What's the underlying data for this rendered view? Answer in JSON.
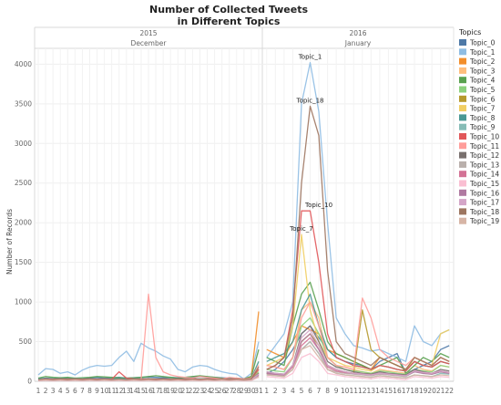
{
  "chart_data": {
    "type": "line",
    "title_line1": "Number of Collected Tweets",
    "title_line2": "in Different Topics",
    "ylabel": "Number of Records",
    "xlabel": "",
    "ylim": [
      0,
      4200
    ],
    "yticks": [
      0,
      500,
      1000,
      1500,
      2000,
      2500,
      3000,
      3500,
      4000
    ],
    "grid": true,
    "legend_position": "right",
    "legend_title": "Topics",
    "panes": [
      {
        "year": "2015",
        "month": "December",
        "days": [
          "1",
          "2",
          "3",
          "4",
          "5",
          "6",
          "7",
          "8",
          "9",
          "10",
          "11",
          "12",
          "13",
          "14",
          "15",
          "16",
          "17",
          "18",
          "19",
          "20",
          "21",
          "22",
          "23",
          "24",
          "25",
          "26",
          "27",
          "28",
          "29",
          "30",
          "31"
        ]
      },
      {
        "year": "2016",
        "month": "January",
        "days": [
          "1",
          "2",
          "3",
          "4",
          "5",
          "6",
          "7",
          "8",
          "9",
          "10",
          "11",
          "12",
          "13",
          "14",
          "15",
          "16",
          "17",
          "18",
          "19",
          "20",
          "21",
          "22"
        ]
      }
    ],
    "series": [
      {
        "name": "Topic_0",
        "color": "#4e79a7",
        "dec": [
          30,
          40,
          35,
          45,
          40,
          35,
          30,
          45,
          50,
          40,
          45,
          50,
          40,
          45,
          50,
          55,
          50,
          45,
          50,
          45,
          50,
          55,
          60,
          55,
          50,
          45,
          40,
          35,
          30,
          60,
          150
        ],
        "jan": [
          100,
          150,
          250,
          400,
          600,
          700,
          550,
          400,
          300,
          250,
          220,
          200,
          150,
          250,
          300,
          350,
          100,
          150,
          200,
          250,
          400,
          450
        ]
      },
      {
        "name": "Topic_1",
        "color": "#8fbde3",
        "dec": [
          80,
          160,
          150,
          100,
          120,
          80,
          140,
          180,
          200,
          190,
          200,
          300,
          380,
          250,
          480,
          420,
          380,
          320,
          280,
          150,
          120,
          180,
          200,
          190,
          150,
          120,
          100,
          90,
          30,
          100,
          500
        ],
        "jan": [
          300,
          450,
          600,
          1000,
          3500,
          4020,
          3400,
          2000,
          800,
          600,
          450,
          420,
          380,
          400,
          350,
          300,
          250,
          700,
          500,
          450,
          600,
          650
        ]
      },
      {
        "name": "Topic_2",
        "color": "#f28e2b",
        "dec": [
          20,
          30,
          25,
          20,
          30,
          25,
          20,
          30,
          25,
          20,
          30,
          25,
          20,
          25,
          30,
          25,
          20,
          30,
          25,
          20,
          30,
          25,
          20,
          25,
          30,
          25,
          20,
          25,
          30,
          60,
          880
        ],
        "jan": [
          400,
          350,
          300,
          500,
          700,
          650,
          600,
          400,
          350,
          300,
          250,
          200,
          150,
          300,
          250,
          200,
          150,
          300,
          250,
          200,
          300,
          250
        ]
      },
      {
        "name": "Topic_3",
        "color": "#ffbe7d",
        "dec": [
          10,
          15,
          10,
          15,
          10,
          15,
          10,
          15,
          10,
          15,
          10,
          15,
          10,
          15,
          10,
          15,
          10,
          15,
          10,
          15,
          10,
          15,
          10,
          15,
          10,
          15,
          10,
          15,
          10,
          20,
          150
        ],
        "jan": [
          200,
          180,
          150,
          300,
          900,
          1000,
          800,
          300,
          200,
          180,
          150,
          120,
          100,
          150,
          130,
          120,
          100,
          200,
          150,
          130,
          200,
          180
        ]
      },
      {
        "name": "Topic_4",
        "color": "#59a14f",
        "dec": [
          40,
          60,
          50,
          45,
          50,
          40,
          45,
          50,
          60,
          55,
          50,
          45,
          40,
          45,
          50,
          60,
          70,
          60,
          50,
          40,
          50,
          60,
          70,
          60,
          50,
          40,
          30,
          40,
          30,
          60,
          400
        ],
        "jan": [
          300,
          250,
          200,
          700,
          1100,
          1250,
          900,
          500,
          350,
          300,
          250,
          200,
          150,
          200,
          250,
          300,
          100,
          200,
          300,
          250,
          350,
          300
        ]
      },
      {
        "name": "Topic_5",
        "color": "#8cd17d",
        "dec": [
          20,
          25,
          30,
          25,
          20,
          25,
          30,
          25,
          20,
          25,
          30,
          25,
          20,
          25,
          30,
          25,
          20,
          25,
          30,
          25,
          20,
          25,
          30,
          25,
          20,
          25,
          30,
          25,
          20,
          30,
          120
        ],
        "jan": [
          150,
          130,
          120,
          300,
          700,
          800,
          600,
          300,
          200,
          150,
          130,
          120,
          100,
          130,
          120,
          100,
          90,
          150,
          130,
          120,
          200,
          180
        ]
      },
      {
        "name": "Topic_6",
        "color": "#b6992d",
        "dec": [
          15,
          20,
          15,
          20,
          15,
          20,
          15,
          20,
          15,
          20,
          15,
          20,
          15,
          20,
          15,
          20,
          15,
          20,
          15,
          20,
          15,
          20,
          15,
          20,
          15,
          20,
          15,
          20,
          15,
          20,
          80
        ],
        "jan": [
          100,
          90,
          80,
          200,
          500,
          600,
          450,
          200,
          150,
          120,
          100,
          900,
          400,
          300,
          250,
          200,
          150,
          250,
          200,
          180,
          250,
          220
        ]
      },
      {
        "name": "Topic_7",
        "color": "#f1ce63",
        "dec": [
          10,
          15,
          20,
          15,
          10,
          15,
          20,
          15,
          10,
          15,
          20,
          15,
          10,
          15,
          20,
          15,
          10,
          15,
          20,
          15,
          10,
          15,
          20,
          15,
          10,
          15,
          20,
          15,
          10,
          20,
          100
        ],
        "jan": [
          200,
          250,
          300,
          700,
          1850,
          900,
          500,
          300,
          250,
          200,
          180,
          150,
          130,
          200,
          180,
          150,
          130,
          300,
          250,
          200,
          600,
          650
        ]
      },
      {
        "name": "Topic_8",
        "color": "#499894",
        "dec": [
          30,
          35,
          30,
          35,
          30,
          35,
          30,
          35,
          30,
          35,
          30,
          35,
          30,
          35,
          30,
          35,
          30,
          35,
          30,
          35,
          30,
          35,
          30,
          35,
          30,
          35,
          30,
          35,
          30,
          40,
          250
        ],
        "jan": [
          250,
          300,
          350,
          500,
          900,
          1100,
          700,
          400,
          300,
          250,
          200,
          180,
          150,
          200,
          180,
          150,
          130,
          250,
          200,
          180,
          250,
          220
        ]
      },
      {
        "name": "Topic_9",
        "color": "#86bcb6",
        "dec": [
          10,
          15,
          10,
          15,
          10,
          15,
          10,
          15,
          10,
          15,
          10,
          15,
          10,
          15,
          10,
          15,
          10,
          15,
          10,
          15,
          10,
          15,
          10,
          15,
          10,
          15,
          10,
          15,
          10,
          15,
          60
        ],
        "jan": [
          80,
          70,
          60,
          150,
          400,
          500,
          350,
          150,
          100,
          80,
          70,
          60,
          50,
          70,
          60,
          50,
          40,
          80,
          70,
          60,
          100,
          90
        ]
      },
      {
        "name": "Topic_10",
        "color": "#e15759",
        "dec": [
          20,
          30,
          25,
          30,
          25,
          30,
          25,
          30,
          25,
          30,
          25,
          120,
          40,
          30,
          25,
          30,
          25,
          30,
          25,
          30,
          25,
          30,
          25,
          30,
          25,
          30,
          25,
          30,
          25,
          30,
          150
        ],
        "jan": [
          150,
          200,
          300,
          900,
          2150,
          2150,
          1500,
          600,
          300,
          250,
          200,
          180,
          150,
          200,
          180,
          150,
          130,
          250,
          200,
          180,
          250,
          220
        ]
      },
      {
        "name": "Topic_11",
        "color": "#ff9d9a",
        "dec": [
          20,
          25,
          20,
          25,
          20,
          25,
          20,
          25,
          20,
          25,
          20,
          25,
          20,
          25,
          20,
          1100,
          300,
          120,
          80,
          60,
          50,
          40,
          60,
          50,
          40,
          30,
          50,
          40,
          30,
          40,
          200
        ],
        "jan": [
          200,
          180,
          150,
          300,
          800,
          1000,
          700,
          300,
          200,
          180,
          150,
          1050,
          800,
          400,
          300,
          250,
          200,
          300,
          250,
          200,
          300,
          250
        ]
      },
      {
        "name": "Topic_12",
        "color": "#79706e",
        "dec": [
          15,
          20,
          15,
          20,
          15,
          20,
          15,
          20,
          15,
          20,
          15,
          20,
          15,
          20,
          15,
          20,
          15,
          20,
          15,
          20,
          15,
          20,
          15,
          20,
          15,
          20,
          15,
          20,
          15,
          20,
          100
        ],
        "jan": [
          120,
          100,
          90,
          200,
          600,
          700,
          500,
          250,
          180,
          150,
          120,
          100,
          90,
          120,
          100,
          90,
          80,
          150,
          120,
          100,
          150,
          130
        ]
      },
      {
        "name": "Topic_13",
        "color": "#bab0ac",
        "dec": [
          10,
          15,
          10,
          15,
          10,
          15,
          10,
          15,
          10,
          15,
          10,
          15,
          10,
          15,
          10,
          15,
          10,
          15,
          10,
          15,
          10,
          15,
          10,
          15,
          10,
          15,
          10,
          15,
          10,
          15,
          70
        ],
        "jan": [
          90,
          80,
          70,
          150,
          400,
          500,
          350,
          150,
          120,
          100,
          90,
          80,
          70,
          90,
          80,
          70,
          60,
          120,
          100,
          90,
          120,
          100
        ]
      },
      {
        "name": "Topic_14",
        "color": "#d37295",
        "dec": [
          10,
          15,
          20,
          15,
          10,
          15,
          20,
          15,
          10,
          15,
          20,
          15,
          10,
          15,
          20,
          15,
          10,
          15,
          20,
          15,
          10,
          15,
          20,
          15,
          10,
          15,
          20,
          15,
          10,
          20,
          90
        ],
        "jan": [
          100,
          90,
          80,
          180,
          450,
          550,
          400,
          180,
          130,
          110,
          100,
          90,
          80,
          100,
          90,
          80,
          70,
          130,
          110,
          100,
          130,
          110
        ]
      },
      {
        "name": "Topic_15",
        "color": "#fabfd2",
        "dec": [
          5,
          10,
          5,
          10,
          5,
          10,
          5,
          10,
          5,
          10,
          5,
          10,
          5,
          10,
          5,
          10,
          5,
          10,
          5,
          10,
          5,
          10,
          5,
          10,
          5,
          10,
          5,
          10,
          5,
          10,
          50
        ],
        "jan": [
          60,
          50,
          40,
          100,
          300,
          350,
          250,
          100,
          80,
          60,
          50,
          40,
          30,
          50,
          40,
          30,
          20,
          60,
          50,
          40,
          60,
          50
        ]
      },
      {
        "name": "Topic_16",
        "color": "#b07aa1",
        "dec": [
          10,
          15,
          10,
          15,
          10,
          15,
          10,
          15,
          10,
          15,
          10,
          15,
          10,
          15,
          10,
          15,
          10,
          15,
          10,
          15,
          10,
          15,
          10,
          15,
          10,
          15,
          10,
          15,
          10,
          15,
          80
        ],
        "jan": [
          100,
          90,
          80,
          200,
          500,
          600,
          400,
          200,
          150,
          120,
          100,
          90,
          80,
          100,
          90,
          80,
          70,
          120,
          100,
          90,
          120,
          100
        ]
      },
      {
        "name": "Topic_17",
        "color": "#d4a6c8",
        "dec": [
          15,
          20,
          15,
          20,
          15,
          20,
          15,
          20,
          15,
          20,
          15,
          20,
          15,
          20,
          15,
          20,
          15,
          20,
          15,
          20,
          15,
          20,
          15,
          20,
          15,
          20,
          15,
          20,
          15,
          20,
          90
        ],
        "jan": [
          120,
          100,
          90,
          200,
          550,
          650,
          450,
          200,
          150,
          120,
          100,
          90,
          80,
          100,
          90,
          80,
          70,
          130,
          110,
          100,
          130,
          110
        ]
      },
      {
        "name": "Topic_18",
        "color": "#9d7660",
        "dec": [
          20,
          25,
          20,
          25,
          20,
          25,
          20,
          25,
          20,
          25,
          20,
          25,
          20,
          25,
          20,
          25,
          20,
          25,
          20,
          25,
          20,
          25,
          20,
          25,
          20,
          25,
          20,
          25,
          20,
          30,
          180
        ],
        "jan": [
          150,
          200,
          300,
          800,
          2500,
          3470,
          3100,
          1400,
          500,
          350,
          300,
          250,
          200,
          300,
          250,
          200,
          150,
          300,
          250,
          200,
          300,
          250
        ]
      },
      {
        "name": "Topic_19",
        "color": "#d7b5a6",
        "dec": [
          10,
          15,
          10,
          15,
          10,
          15,
          10,
          15,
          10,
          15,
          10,
          15,
          10,
          15,
          10,
          15,
          10,
          15,
          10,
          15,
          10,
          15,
          10,
          15,
          10,
          15,
          10,
          15,
          10,
          15,
          60
        ],
        "jan": [
          80,
          70,
          60,
          150,
          400,
          450,
          300,
          150,
          100,
          80,
          70,
          60,
          50,
          70,
          60,
          50,
          40,
          80,
          70,
          60,
          80,
          70
        ]
      }
    ],
    "annotations": [
      {
        "text": "Topic_1",
        "pane": 1,
        "day_index": 5,
        "value": 4020
      },
      {
        "text": "Topic_18",
        "pane": 1,
        "day_index": 5,
        "value": 3470
      },
      {
        "text": "Topic_10",
        "pane": 1,
        "day_index": 6,
        "value": 2150
      },
      {
        "text": "Topic_7",
        "pane": 1,
        "day_index": 4,
        "value": 1850
      }
    ]
  }
}
